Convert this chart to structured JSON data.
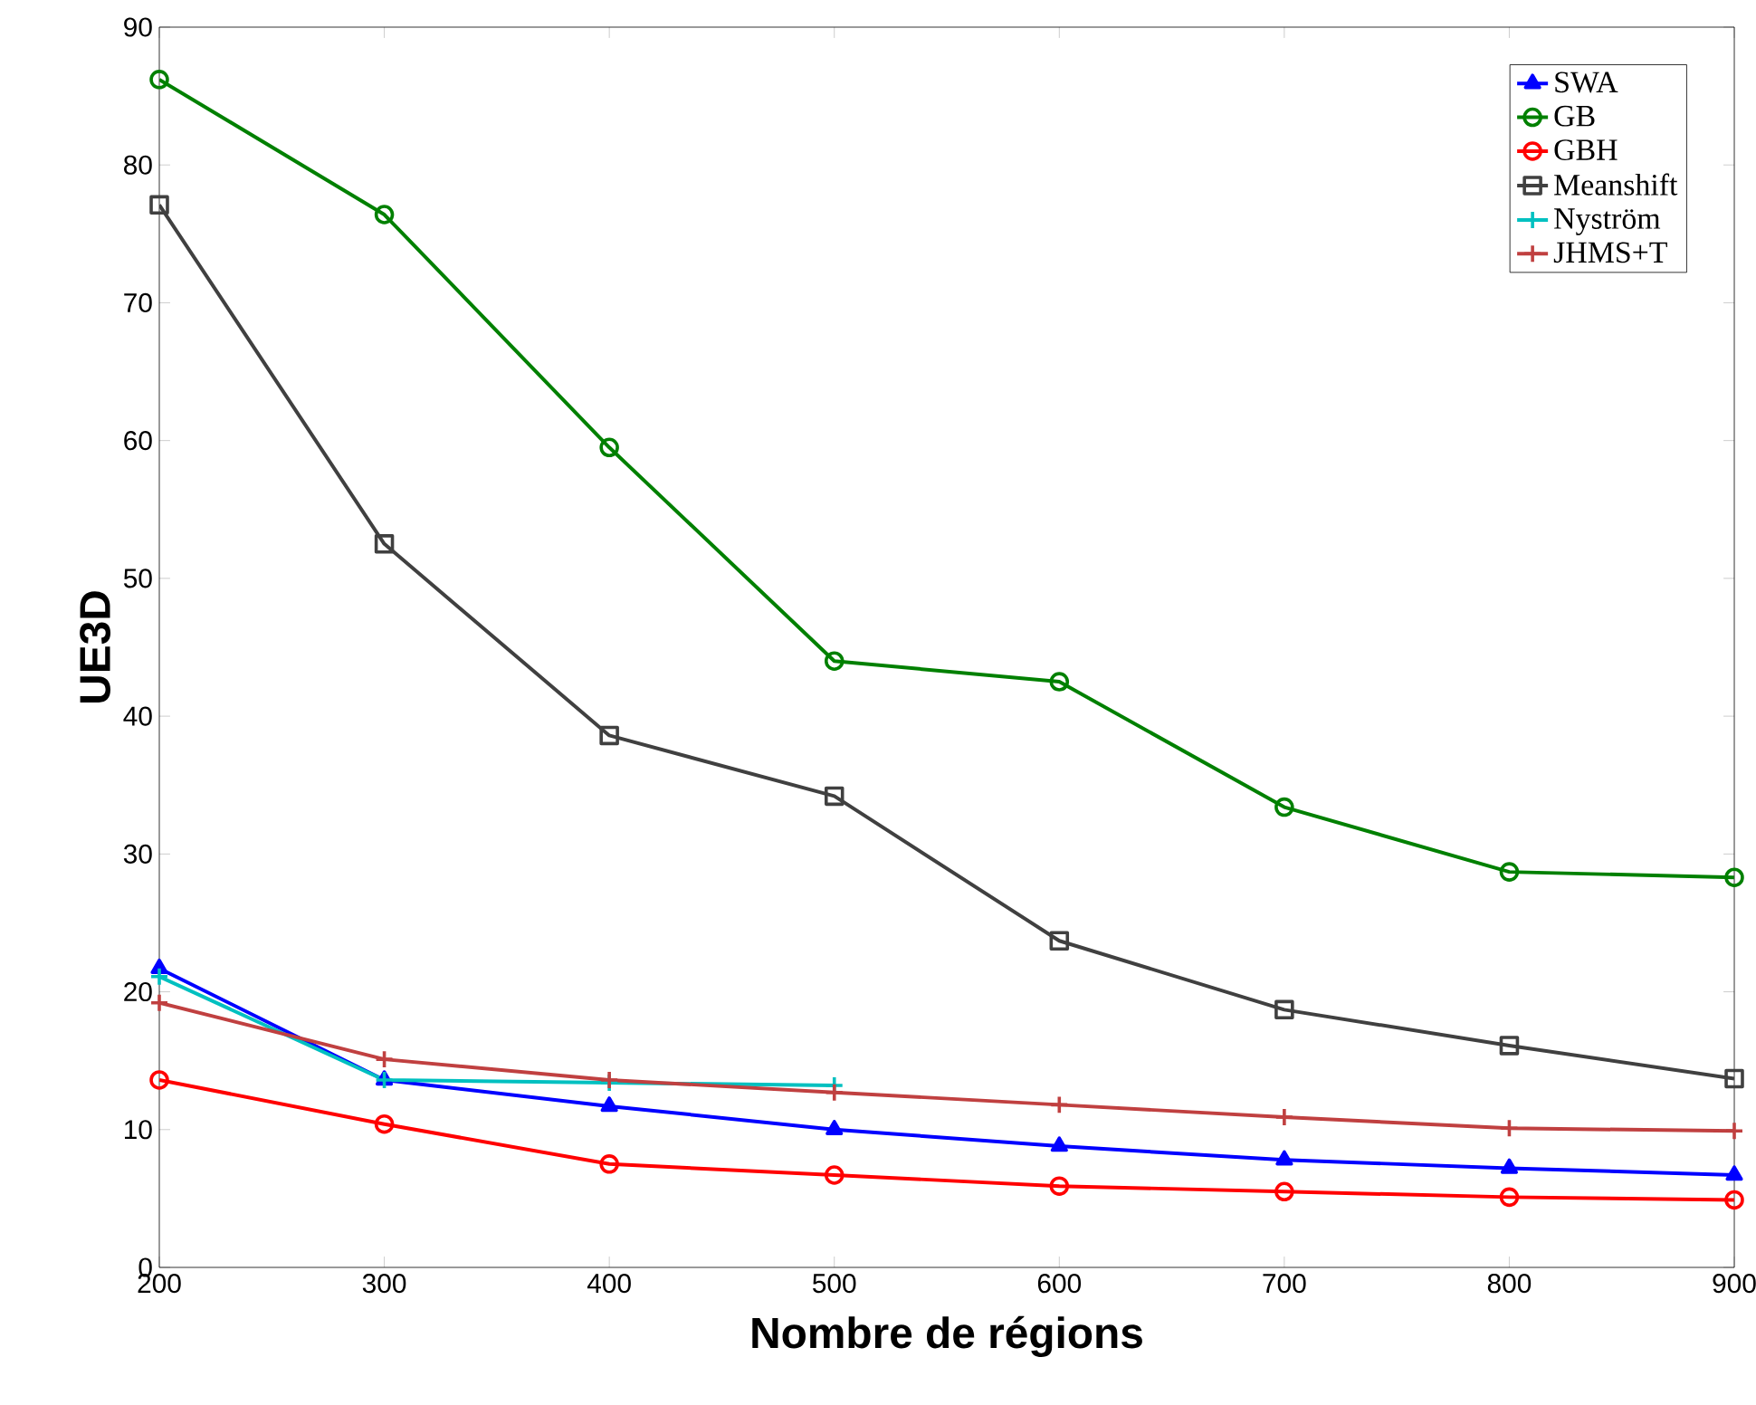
{
  "chart_data": {
    "type": "line",
    "xlabel": "Nombre de régions",
    "ylabel": "UE3D",
    "x": [
      200,
      300,
      400,
      500,
      600,
      700,
      800,
      900
    ],
    "xlim": [
      200,
      900
    ],
    "xticks": [
      200,
      300,
      400,
      500,
      600,
      700,
      800,
      900
    ],
    "ylim": [
      0,
      90
    ],
    "yticks": [
      0,
      10,
      20,
      30,
      40,
      50,
      60,
      70,
      80,
      90
    ],
    "grid": false,
    "legend": "top right",
    "line_style": "solid",
    "series": [
      {
        "name": "SWA",
        "color": "#0000ff",
        "marker": "triangle",
        "values": [
          21.7,
          13.6,
          11.7,
          10,
          8.8,
          7.8,
          7.2,
          6.7
        ]
      },
      {
        "name": "GB",
        "color": "#008000",
        "marker": "circle",
        "values": [
          86.2,
          76.4,
          59.5,
          44,
          42.5,
          33.4,
          28.7,
          28.3
        ]
      },
      {
        "name": "GBH",
        "color": "#ff0000",
        "marker": "circle",
        "values": [
          13.6,
          10.4,
          7.5,
          6.7,
          5.9,
          5.5,
          5.1,
          4.9
        ]
      },
      {
        "name": "Meanshift",
        "color": "#404040",
        "marker": "square",
        "values": [
          77.1,
          52.5,
          38.6,
          34.2,
          23.7,
          18.7,
          16.1,
          13.7
        ]
      },
      {
        "name": "Nyström",
        "color": "#00c0c0",
        "marker": "cross",
        "values": [
          21.1,
          13.6,
          13.4,
          13.2,
          null,
          null,
          null,
          null
        ]
      },
      {
        "name": "JHMS+T",
        "color": "#c04040",
        "marker": "cross",
        "values": [
          19.2,
          15.1,
          13.6,
          12.7,
          11.8,
          10.9,
          10.1,
          9.9
        ]
      }
    ]
  }
}
